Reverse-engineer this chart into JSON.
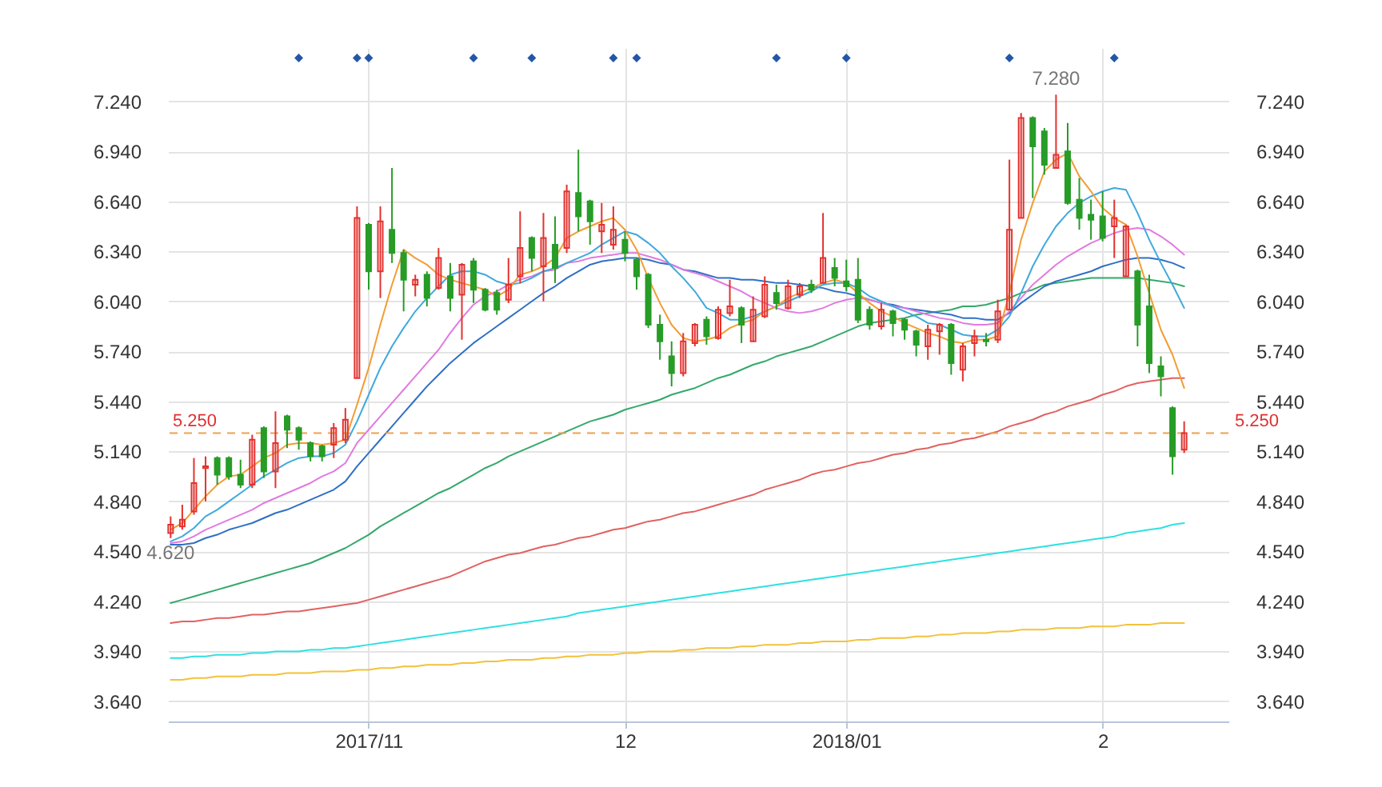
{
  "chart_data": {
    "type": "candlestick",
    "categories": [
      null,
      null,
      null,
      null,
      null,
      null,
      null,
      null,
      null,
      null,
      null,
      null,
      null,
      null,
      null,
      null,
      null,
      "2017/11",
      null,
      null,
      null,
      null,
      null,
      null,
      null,
      null,
      null,
      null,
      null,
      null,
      null,
      null,
      null,
      null,
      null,
      null,
      null,
      null,
      null,
      "12",
      null,
      null,
      null,
      null,
      null,
      null,
      null,
      null,
      null,
      null,
      null,
      null,
      null,
      null,
      null,
      null,
      null,
      null,
      "2018/01",
      null,
      null,
      null,
      null,
      null,
      null,
      null,
      null,
      null,
      null,
      null,
      null,
      null,
      null,
      null,
      null,
      null,
      null,
      null,
      null,
      null,
      "2",
      null,
      null,
      null,
      null,
      null,
      null,
      null
    ],
    "ohlc": [
      [
        4.65,
        4.75,
        4.62,
        4.7
      ],
      [
        4.69,
        4.82,
        4.67,
        4.73
      ],
      [
        4.78,
        5.1,
        4.76,
        4.95
      ],
      [
        5.04,
        5.11,
        4.84,
        5.05
      ],
      [
        5.1,
        5.11,
        4.94,
        5.0
      ],
      [
        5.1,
        5.11,
        4.97,
        4.99
      ],
      [
        5.0,
        5.09,
        4.92,
        4.94
      ],
      [
        4.94,
        5.24,
        4.92,
        5.21
      ],
      [
        5.28,
        5.29,
        4.98,
        5.02
      ],
      [
        5.02,
        5.38,
        4.92,
        5.19
      ],
      [
        5.35,
        5.36,
        5.16,
        5.27
      ],
      [
        5.28,
        5.29,
        5.15,
        5.21
      ],
      [
        5.19,
        5.2,
        5.08,
        5.11
      ],
      [
        5.17,
        5.18,
        5.08,
        5.11
      ],
      [
        5.18,
        5.31,
        5.1,
        5.28
      ],
      [
        5.21,
        5.4,
        5.19,
        5.33
      ],
      [
        5.58,
        6.61,
        5.58,
        6.54
      ],
      [
        6.5,
        6.51,
        6.11,
        6.22
      ],
      [
        6.22,
        6.61,
        6.06,
        6.52
      ],
      [
        6.47,
        6.84,
        6.27,
        6.33
      ],
      [
        6.33,
        6.35,
        5.98,
        6.17
      ],
      [
        6.14,
        6.2,
        6.07,
        6.17
      ],
      [
        6.2,
        6.22,
        6.01,
        6.06
      ],
      [
        6.12,
        6.36,
        6.11,
        6.3
      ],
      [
        6.19,
        6.27,
        5.98,
        6.06
      ],
      [
        6.08,
        6.27,
        5.81,
        6.26
      ],
      [
        6.28,
        6.3,
        6.03,
        6.11
      ],
      [
        6.11,
        6.12,
        5.98,
        5.99
      ],
      [
        6.09,
        6.11,
        5.96,
        5.99
      ],
      [
        6.05,
        6.3,
        6.03,
        6.14
      ],
      [
        6.19,
        6.58,
        6.15,
        6.36
      ],
      [
        6.42,
        6.43,
        6.22,
        6.3
      ],
      [
        6.25,
        6.57,
        6.04,
        6.42
      ],
      [
        6.38,
        6.55,
        6.15,
        6.24
      ],
      [
        6.36,
        6.74,
        6.33,
        6.7
      ],
      [
        6.69,
        6.95,
        6.46,
        6.55
      ],
      [
        6.64,
        6.65,
        6.38,
        6.52
      ],
      [
        6.46,
        6.63,
        6.33,
        6.5
      ],
      [
        6.38,
        6.61,
        6.35,
        6.47
      ],
      [
        6.41,
        6.46,
        6.28,
        6.33
      ],
      [
        6.29,
        6.3,
        6.11,
        6.19
      ],
      [
        6.2,
        6.21,
        5.88,
        5.9
      ],
      [
        5.9,
        5.96,
        5.69,
        5.8
      ],
      [
        5.71,
        5.8,
        5.53,
        5.61
      ],
      [
        5.61,
        5.85,
        5.59,
        5.8
      ],
      [
        5.79,
        5.91,
        5.77,
        5.9
      ],
      [
        5.93,
        5.95,
        5.78,
        5.83
      ],
      [
        5.82,
        6.01,
        5.81,
        5.99
      ],
      [
        5.97,
        6.17,
        5.95,
        6.01
      ],
      [
        6.0,
        6.01,
        5.79,
        5.9
      ],
      [
        5.8,
        6.07,
        5.8,
        5.99
      ],
      [
        5.95,
        6.19,
        5.94,
        6.14
      ],
      [
        6.09,
        6.14,
        5.99,
        6.03
      ],
      [
        6.0,
        6.17,
        5.99,
        6.13
      ],
      [
        6.08,
        6.15,
        6.06,
        6.13
      ],
      [
        6.14,
        6.17,
        6.09,
        6.11
      ],
      [
        6.15,
        6.57,
        6.15,
        6.3
      ],
      [
        6.24,
        6.3,
        6.13,
        6.18
      ],
      [
        6.16,
        6.29,
        6.1,
        6.13
      ],
      [
        6.17,
        6.3,
        5.91,
        5.93
      ],
      [
        5.99,
        6.01,
        5.87,
        5.9
      ],
      [
        5.89,
        6.03,
        5.87,
        5.99
      ],
      [
        5.98,
        5.99,
        5.83,
        5.91
      ],
      [
        5.93,
        5.94,
        5.81,
        5.87
      ],
      [
        5.86,
        5.87,
        5.71,
        5.78
      ],
      [
        5.77,
        5.9,
        5.69,
        5.87
      ],
      [
        5.86,
        5.91,
        5.72,
        5.9
      ],
      [
        5.9,
        5.91,
        5.6,
        5.67
      ],
      [
        5.63,
        5.79,
        5.56,
        5.77
      ],
      [
        5.79,
        5.87,
        5.71,
        5.83
      ],
      [
        5.81,
        5.85,
        5.77,
        5.8
      ],
      [
        5.81,
        6.05,
        5.79,
        5.98
      ],
      [
        5.99,
        6.89,
        5.99,
        6.47
      ],
      [
        6.54,
        7.17,
        6.54,
        7.14
      ],
      [
        7.14,
        7.15,
        6.66,
        6.97
      ],
      [
        7.06,
        7.08,
        6.8,
        6.86
      ],
      [
        6.84,
        7.28,
        6.84,
        6.92
      ],
      [
        6.94,
        7.11,
        6.62,
        6.63
      ],
      [
        6.65,
        6.78,
        6.47,
        6.54
      ],
      [
        6.56,
        6.65,
        6.41,
        6.53
      ],
      [
        6.55,
        6.7,
        6.4,
        6.42
      ],
      [
        6.49,
        6.65,
        6.3,
        6.54
      ],
      [
        6.19,
        6.5,
        6.19,
        6.49
      ],
      [
        6.22,
        6.23,
        5.77,
        5.9
      ],
      [
        6.01,
        6.2,
        5.61,
        5.67
      ],
      [
        5.65,
        5.71,
        5.47,
        5.59
      ],
      [
        5.4,
        5.41,
        5.0,
        5.11
      ],
      [
        5.15,
        5.32,
        5.13,
        5.25
      ]
    ],
    "colors": [
      "#e2322f",
      "#e2322f",
      "#e2322f",
      "#e2322f",
      "#279c27",
      "#279c27",
      "#279c27",
      "#e2322f",
      "#279c27",
      "#e2322f",
      "#279c27",
      "#279c27",
      "#279c27",
      "#279c27",
      "#e2322f",
      "#e2322f",
      "#e2322f",
      "#279c27",
      "#e2322f",
      "#279c27",
      "#279c27",
      "#e2322f",
      "#279c27",
      "#e2322f",
      "#279c27",
      "#e2322f",
      "#279c27",
      "#279c27",
      "#279c27",
      "#e2322f",
      "#e2322f",
      "#279c27",
      "#e2322f",
      "#279c27",
      "#e2322f",
      "#279c27",
      "#279c27",
      "#e2322f",
      "#e2322f",
      "#279c27",
      "#279c27",
      "#279c27",
      "#279c27",
      "#279c27",
      "#e2322f",
      "#e2322f",
      "#279c27",
      "#e2322f",
      "#e2322f",
      "#279c27",
      "#e2322f",
      "#e2322f",
      "#279c27",
      "#e2322f",
      "#e2322f",
      "#279c27",
      "#e2322f",
      "#279c27",
      "#279c27",
      "#279c27",
      "#279c27",
      "#e2322f",
      "#279c27",
      "#279c27",
      "#279c27",
      "#e2322f",
      "#e2322f",
      "#279c27",
      "#e2322f",
      "#e2322f",
      "#279c27",
      "#e2322f",
      "#e2322f",
      "#e2322f",
      "#279c27",
      "#279c27",
      "#e2322f",
      "#279c27",
      "#279c27",
      "#279c27",
      "#279c27",
      "#e2322f",
      "#e2322f",
      "#279c27",
      "#279c27",
      "#279c27",
      "#279c27",
      "#e2322f"
    ],
    "series": [
      {
        "type": "line",
        "color": "#f2c23a",
        "values": [
          3.77,
          3.77,
          3.78,
          3.78,
          3.79,
          3.79,
          3.79,
          3.8,
          3.8,
          3.8,
          3.81,
          3.81,
          3.81,
          3.82,
          3.82,
          3.82,
          3.83,
          3.83,
          3.84,
          3.84,
          3.85,
          3.85,
          3.86,
          3.86,
          3.86,
          3.87,
          3.87,
          3.88,
          3.88,
          3.89,
          3.89,
          3.89,
          3.9,
          3.9,
          3.91,
          3.91,
          3.92,
          3.92,
          3.92,
          3.93,
          3.93,
          3.94,
          3.94,
          3.94,
          3.95,
          3.95,
          3.96,
          3.96,
          3.96,
          3.97,
          3.97,
          3.98,
          3.98,
          3.98,
          3.99,
          3.99,
          4.0,
          4.0,
          4.0,
          4.01,
          4.01,
          4.02,
          4.02,
          4.02,
          4.03,
          4.03,
          4.04,
          4.04,
          4.05,
          4.05,
          4.05,
          4.06,
          4.06,
          4.07,
          4.07,
          4.07,
          4.08,
          4.08,
          4.08,
          4.09,
          4.09,
          4.09,
          4.1,
          4.1,
          4.1,
          4.11,
          4.11,
          4.11
        ]
      },
      {
        "type": "line",
        "color": "#2fe0e0",
        "values": [
          3.9,
          3.9,
          3.91,
          3.91,
          3.92,
          3.92,
          3.92,
          3.93,
          3.93,
          3.94,
          3.94,
          3.94,
          3.95,
          3.95,
          3.96,
          3.96,
          3.97,
          3.98,
          3.99,
          4.0,
          4.01,
          4.02,
          4.03,
          4.04,
          4.05,
          4.06,
          4.07,
          4.08,
          4.09,
          4.1,
          4.11,
          4.12,
          4.13,
          4.14,
          4.15,
          4.17,
          4.18,
          4.19,
          4.2,
          4.21,
          4.22,
          4.23,
          4.24,
          4.25,
          4.26,
          4.27,
          4.28,
          4.29,
          4.3,
          4.31,
          4.32,
          4.33,
          4.34,
          4.35,
          4.36,
          4.37,
          4.38,
          4.39,
          4.4,
          4.41,
          4.42,
          4.43,
          4.44,
          4.45,
          4.46,
          4.47,
          4.48,
          4.49,
          4.5,
          4.51,
          4.52,
          4.53,
          4.54,
          4.55,
          4.56,
          4.57,
          4.58,
          4.59,
          4.6,
          4.61,
          4.62,
          4.63,
          4.65,
          4.66,
          4.67,
          4.68,
          4.7,
          4.71
        ]
      },
      {
        "type": "line",
        "color": "#e06262",
        "values": [
          4.11,
          4.12,
          4.12,
          4.13,
          4.14,
          4.14,
          4.15,
          4.16,
          4.16,
          4.17,
          4.18,
          4.18,
          4.19,
          4.2,
          4.21,
          4.22,
          4.23,
          4.25,
          4.27,
          4.29,
          4.31,
          4.33,
          4.35,
          4.37,
          4.39,
          4.42,
          4.45,
          4.48,
          4.5,
          4.52,
          4.53,
          4.55,
          4.57,
          4.58,
          4.6,
          4.62,
          4.63,
          4.65,
          4.67,
          4.68,
          4.7,
          4.72,
          4.73,
          4.75,
          4.77,
          4.78,
          4.8,
          4.82,
          4.84,
          4.86,
          4.88,
          4.91,
          4.93,
          4.95,
          4.97,
          5.0,
          5.02,
          5.03,
          5.05,
          5.07,
          5.08,
          5.1,
          5.12,
          5.13,
          5.15,
          5.16,
          5.18,
          5.19,
          5.21,
          5.22,
          5.24,
          5.26,
          5.29,
          5.31,
          5.33,
          5.36,
          5.38,
          5.41,
          5.43,
          5.45,
          5.48,
          5.5,
          5.53,
          5.55,
          5.56,
          5.57,
          5.58,
          5.58
        ]
      },
      {
        "type": "line",
        "color": "#35a86c",
        "values": [
          4.23,
          4.25,
          4.27,
          4.29,
          4.31,
          4.33,
          4.35,
          4.37,
          4.39,
          4.41,
          4.43,
          4.45,
          4.47,
          4.5,
          4.53,
          4.56,
          4.6,
          4.64,
          4.69,
          4.73,
          4.77,
          4.81,
          4.85,
          4.89,
          4.92,
          4.96,
          5.0,
          5.04,
          5.07,
          5.11,
          5.14,
          5.17,
          5.2,
          5.23,
          5.26,
          5.29,
          5.32,
          5.34,
          5.36,
          5.39,
          5.41,
          5.43,
          5.45,
          5.48,
          5.5,
          5.52,
          5.55,
          5.58,
          5.6,
          5.63,
          5.66,
          5.68,
          5.71,
          5.73,
          5.75,
          5.77,
          5.8,
          5.83,
          5.86,
          5.89,
          5.91,
          5.92,
          5.93,
          5.94,
          5.96,
          5.97,
          5.98,
          5.99,
          6.01,
          6.01,
          6.02,
          6.04,
          6.06,
          6.09,
          6.11,
          6.14,
          6.15,
          6.16,
          6.17,
          6.18,
          6.18,
          6.18,
          6.18,
          6.18,
          6.17,
          6.16,
          6.15,
          6.13
        ]
      },
      {
        "type": "line",
        "color": "#2f6fc6",
        "values": [
          4.58,
          4.58,
          4.59,
          4.62,
          4.64,
          4.67,
          4.69,
          4.71,
          4.74,
          4.77,
          4.79,
          4.82,
          4.85,
          4.88,
          4.91,
          4.96,
          5.05,
          5.13,
          5.21,
          5.29,
          5.37,
          5.45,
          5.53,
          5.6,
          5.67,
          5.73,
          5.79,
          5.84,
          5.89,
          5.94,
          5.99,
          6.04,
          6.09,
          6.13,
          6.18,
          6.22,
          6.26,
          6.28,
          6.29,
          6.3,
          6.3,
          6.29,
          6.27,
          6.26,
          6.23,
          6.22,
          6.2,
          6.18,
          6.18,
          6.17,
          6.17,
          6.16,
          6.15,
          6.15,
          6.14,
          6.13,
          6.12,
          6.1,
          6.09,
          6.07,
          6.05,
          6.03,
          6.02,
          6.0,
          5.99,
          5.98,
          5.97,
          5.96,
          5.94,
          5.94,
          5.93,
          5.93,
          5.97,
          6.03,
          6.08,
          6.13,
          6.16,
          6.18,
          6.2,
          6.22,
          6.25,
          6.27,
          6.29,
          6.3,
          6.3,
          6.29,
          6.27,
          6.24
        ]
      },
      {
        "type": "line",
        "color": "#e07be0",
        "values": [
          4.59,
          4.6,
          4.63,
          4.67,
          4.7,
          4.73,
          4.76,
          4.79,
          4.83,
          4.86,
          4.89,
          4.92,
          4.95,
          4.99,
          5.02,
          5.07,
          5.19,
          5.27,
          5.35,
          5.43,
          5.51,
          5.59,
          5.67,
          5.75,
          5.85,
          5.94,
          6.02,
          6.07,
          6.1,
          6.14,
          6.17,
          6.19,
          6.22,
          6.23,
          6.27,
          6.28,
          6.3,
          6.31,
          6.32,
          6.33,
          6.33,
          6.31,
          6.29,
          6.26,
          6.23,
          6.21,
          6.19,
          6.16,
          6.13,
          6.1,
          6.06,
          6.03,
          6.0,
          5.98,
          5.97,
          5.98,
          6.0,
          6.03,
          6.05,
          6.06,
          6.05,
          6.03,
          6.01,
          6.0,
          5.98,
          5.96,
          5.94,
          5.93,
          5.91,
          5.9,
          5.9,
          5.91,
          5.98,
          6.06,
          6.14,
          6.2,
          6.26,
          6.31,
          6.35,
          6.39,
          6.42,
          6.45,
          6.47,
          6.48,
          6.47,
          6.43,
          6.38,
          6.32
        ]
      },
      {
        "type": "line",
        "color": "#3fa9dc",
        "values": [
          4.6,
          4.63,
          4.68,
          4.75,
          4.79,
          4.84,
          4.89,
          4.94,
          4.99,
          5.03,
          5.07,
          5.1,
          5.11,
          5.11,
          5.13,
          5.18,
          5.32,
          5.48,
          5.64,
          5.77,
          5.88,
          5.98,
          6.06,
          6.13,
          6.2,
          6.22,
          6.22,
          6.2,
          6.16,
          6.14,
          6.15,
          6.18,
          6.22,
          6.24,
          6.27,
          6.3,
          6.33,
          6.38,
          6.42,
          6.46,
          6.44,
          6.39,
          6.33,
          6.25,
          6.18,
          6.1,
          6.0,
          5.97,
          5.93,
          5.93,
          5.95,
          5.98,
          6.01,
          6.04,
          6.07,
          6.1,
          6.14,
          6.15,
          6.15,
          6.12,
          6.07,
          6.04,
          6.01,
          5.98,
          5.95,
          5.91,
          5.9,
          5.87,
          5.84,
          5.83,
          5.83,
          5.87,
          5.95,
          6.09,
          6.25,
          6.38,
          6.49,
          6.57,
          6.63,
          6.67,
          6.7,
          6.72,
          6.71,
          6.57,
          6.41,
          6.27,
          6.14,
          6.0
        ]
      },
      {
        "type": "line",
        "color": "#f39c34",
        "values": [
          4.67,
          4.71,
          4.79,
          4.87,
          4.94,
          4.99,
          5.0,
          5.05,
          5.1,
          5.13,
          5.18,
          5.19,
          5.19,
          5.18,
          5.19,
          5.21,
          5.42,
          5.64,
          5.9,
          6.14,
          6.35,
          6.3,
          6.26,
          6.2,
          6.17,
          6.15,
          6.13,
          6.11,
          6.07,
          6.11,
          6.2,
          6.22,
          6.25,
          6.3,
          6.42,
          6.46,
          6.49,
          6.52,
          6.54,
          6.47,
          6.35,
          6.18,
          6.03,
          5.9,
          5.82,
          5.8,
          5.81,
          5.83,
          5.88,
          5.91,
          5.93,
          5.98,
          6.01,
          6.06,
          6.09,
          6.12,
          6.15,
          6.17,
          6.15,
          6.09,
          6.03,
          5.98,
          5.95,
          5.91,
          5.88,
          5.85,
          5.83,
          5.8,
          5.79,
          5.81,
          5.81,
          5.83,
          6.09,
          6.41,
          6.63,
          6.82,
          6.89,
          6.93,
          6.79,
          6.7,
          6.6,
          6.54,
          6.5,
          6.31,
          6.09,
          5.87,
          5.72,
          5.52
        ]
      },
      {
        "type": "scatter",
        "axis": "y2",
        "marker": "diamond",
        "color": "#2456a8",
        "values": [
          null,
          null,
          null,
          null,
          null,
          null,
          null,
          null,
          null,
          null,
          null,
          7.5,
          null,
          null,
          null,
          null,
          7.5,
          7.5,
          null,
          null,
          null,
          null,
          null,
          null,
          null,
          null,
          7.5,
          null,
          null,
          null,
          null,
          7.5,
          null,
          null,
          null,
          null,
          null,
          null,
          7.5,
          null,
          7.5,
          null,
          null,
          null,
          null,
          null,
          null,
          null,
          null,
          null,
          null,
          null,
          7.5,
          null,
          null,
          null,
          null,
          null,
          7.5,
          null,
          null,
          null,
          null,
          null,
          null,
          null,
          null,
          null,
          null,
          null,
          null,
          null,
          7.5,
          null,
          null,
          null,
          null,
          null,
          null,
          null,
          null,
          7.5,
          null,
          null,
          null,
          null,
          null,
          null
        ]
      }
    ],
    "ylim": [
      3.52,
      7.56
    ],
    "yticks": [
      {
        "value": 3.64,
        "label": "3.640"
      },
      {
        "value": 3.94,
        "label": "3.940"
      },
      {
        "value": 4.24,
        "label": "4.240"
      },
      {
        "value": 4.54,
        "label": "4.540"
      },
      {
        "value": 4.84,
        "label": "4.840"
      },
      {
        "value": 5.14,
        "label": "5.140"
      },
      {
        "value": 5.44,
        "label": "5.440"
      },
      {
        "value": 5.74,
        "label": "5.740"
      },
      {
        "value": 6.04,
        "label": "6.040"
      },
      {
        "value": 6.34,
        "label": "6.340"
      },
      {
        "value": 6.64,
        "label": "6.640"
      },
      {
        "value": 6.94,
        "label": "6.940"
      },
      {
        "value": 7.24,
        "label": "7.240"
      }
    ],
    "y2lim": [
      3.52,
      7.56
    ],
    "y2ticks": [
      {
        "value": 3.64,
        "label": "3.640"
      },
      {
        "value": 3.94,
        "label": "3.940"
      },
      {
        "value": 4.24,
        "label": "4.240"
      },
      {
        "value": 4.54,
        "label": "4.540"
      },
      {
        "value": 4.84,
        "label": "4.840"
      },
      {
        "value": 5.14,
        "label": "5.140"
      },
      {
        "value": 5.44,
        "label": "5.440"
      },
      {
        "value": 5.74,
        "label": "5.740"
      },
      {
        "value": 6.04,
        "label": "6.040"
      },
      {
        "value": 6.34,
        "label": "6.340"
      },
      {
        "value": 6.64,
        "label": "6.640"
      },
      {
        "value": 6.94,
        "label": "6.940"
      },
      {
        "value": 7.24,
        "label": "7.240"
      }
    ],
    "grid": true,
    "ref_lines": [
      {
        "axis": "y",
        "value": 5.25,
        "label": "5.250",
        "color": "#f0a050",
        "line_style": "dashed"
      }
    ],
    "annotations": [
      {
        "text": "7.280",
        "y": 7.28
      },
      {
        "text": "4.620",
        "y": 4.62
      }
    ]
  }
}
